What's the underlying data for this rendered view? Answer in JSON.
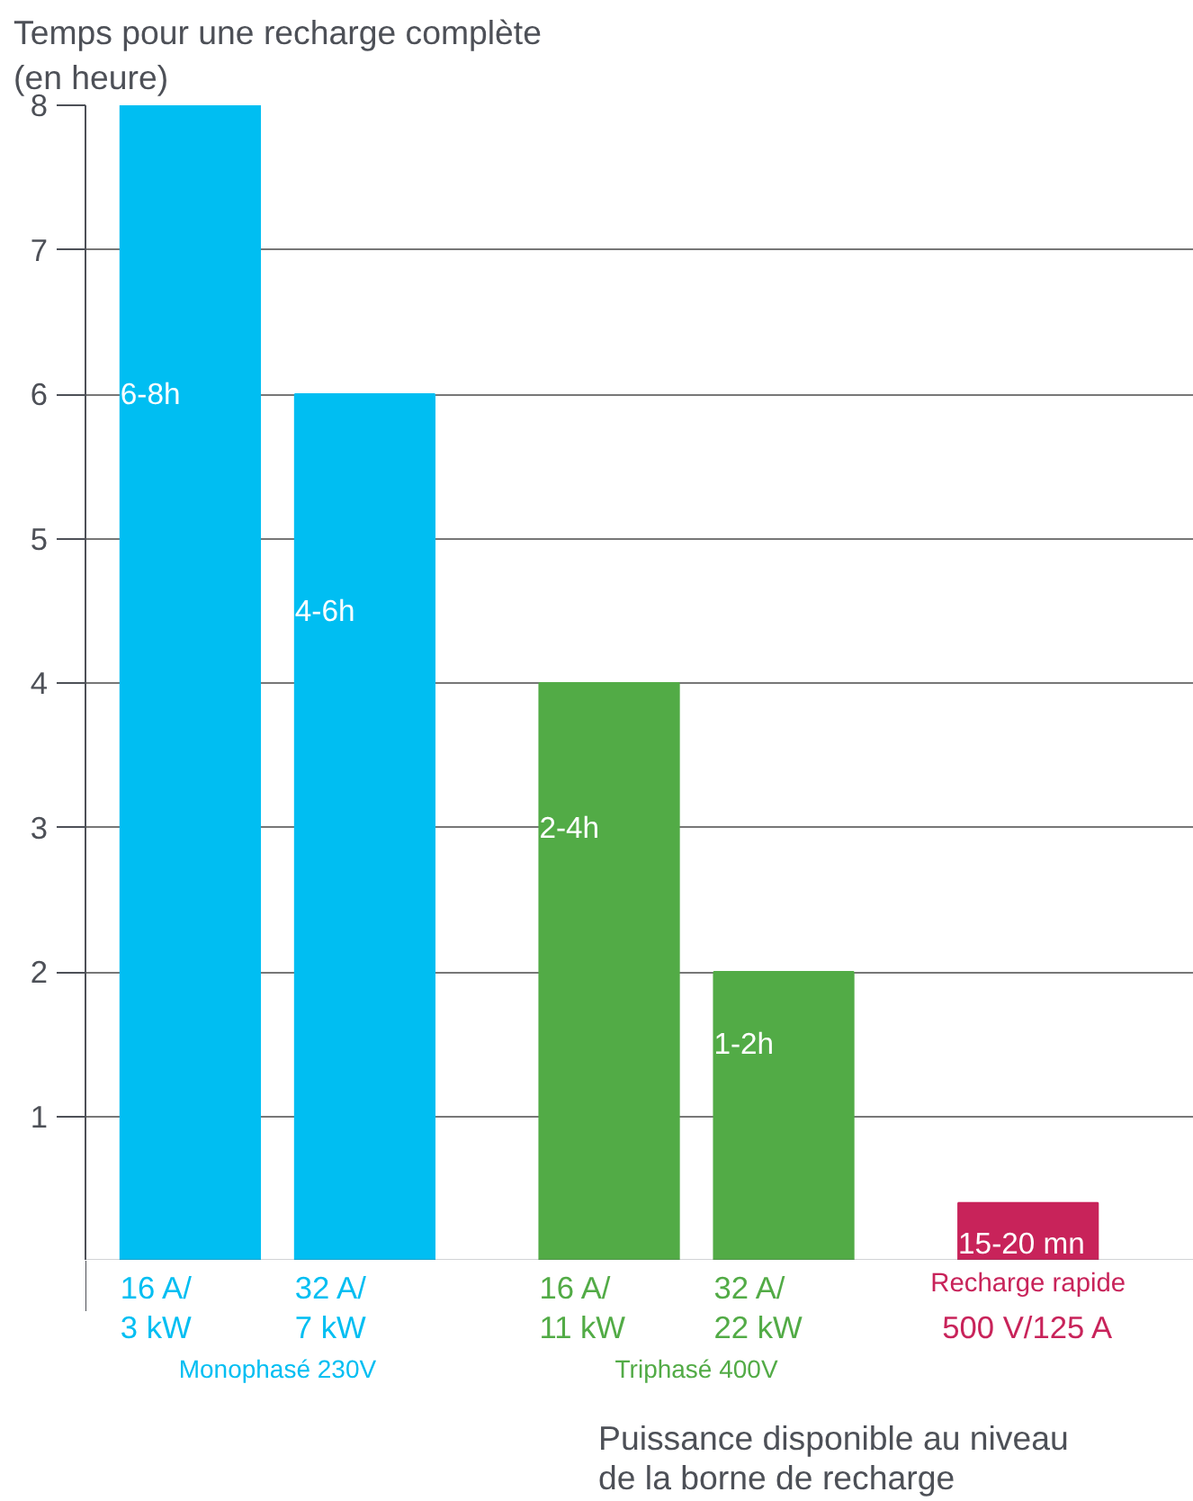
{
  "chart_data": {
    "type": "bar",
    "ylabel": "Temps pour une recharge complète\n(en heure)",
    "xlabel": "Puissance disponible au niveau\nde la borne de recharge",
    "categories": [
      "16 A/\n3 kW",
      "32 A/\n7 kW",
      "16 A/\n11 kW",
      "32 A/\n 22 kW",
      "Recharge rapide\n500 V/125 A"
    ],
    "values": [
      8,
      6,
      4,
      2,
      0.4
    ],
    "colors": [
      "#00bef2",
      "#00bef2",
      "#52ab46",
      "#52ab46",
      "#c8235a"
    ],
    "value_labels": [
      "6-8h",
      "4-6h",
      "2-4h",
      "1-2h",
      "15-20 mn"
    ],
    "annotations": [
      "Monophasé 230V",
      "Triphasé 400V"
    ],
    "ylim": [
      0,
      8
    ],
    "yticks": [
      {
        "value": 0,
        "label": null
      },
      1,
      2,
      3,
      4,
      5,
      6,
      7,
      8
    ],
    "grid": "y"
  }
}
